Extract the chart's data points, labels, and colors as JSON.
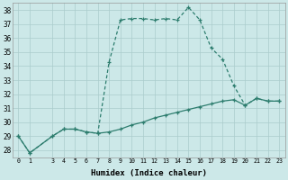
{
  "xlabel": "Humidex (Indice chaleur)",
  "x": [
    0,
    1,
    3,
    4,
    5,
    6,
    7,
    8,
    9,
    10,
    11,
    12,
    13,
    14,
    15,
    16,
    17,
    18,
    19,
    20,
    21,
    22,
    23
  ],
  "line1": [
    29.0,
    27.8,
    29.0,
    29.5,
    29.5,
    29.3,
    29.2,
    34.3,
    37.3,
    37.4,
    37.4,
    37.3,
    37.4,
    37.3,
    38.2,
    37.3,
    35.3,
    34.5,
    32.6,
    31.2,
    31.7,
    31.5,
    31.5
  ],
  "line2": [
    29.0,
    27.8,
    29.0,
    29.5,
    29.5,
    29.3,
    29.2,
    29.3,
    29.5,
    29.8,
    30.0,
    30.3,
    30.5,
    30.7,
    30.9,
    31.1,
    31.3,
    31.5,
    31.6,
    31.2,
    31.7,
    31.5,
    31.5
  ],
  "ylim": [
    27.5,
    38.5
  ],
  "xlim": [
    -0.5,
    23.5
  ],
  "yticks": [
    28,
    29,
    30,
    31,
    32,
    33,
    34,
    35,
    36,
    37,
    38
  ],
  "xticks": [
    0,
    1,
    3,
    4,
    5,
    6,
    7,
    8,
    9,
    10,
    11,
    12,
    13,
    14,
    15,
    16,
    17,
    18,
    19,
    20,
    21,
    22,
    23
  ],
  "line_color": "#2d7d6e",
  "bg_color": "#cce8e8",
  "grid_color": "#aacccc",
  "marker": "+"
}
